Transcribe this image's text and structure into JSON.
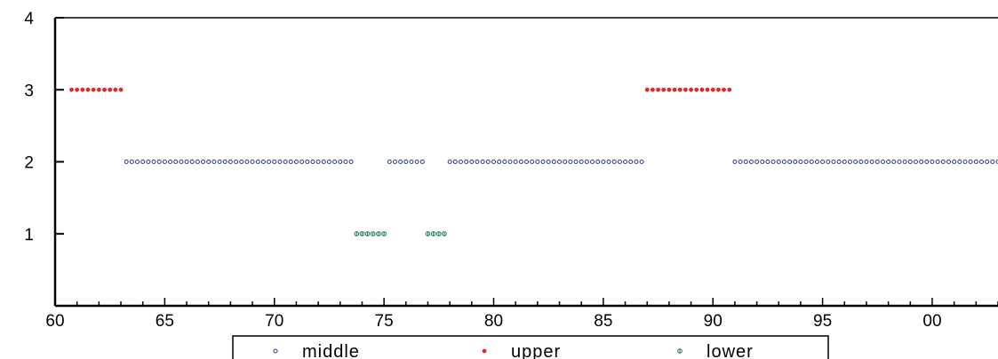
{
  "chart_data": {
    "type": "scatter",
    "title": "",
    "xlabel": "",
    "ylabel": "",
    "xlim": [
      1960,
      2003
    ],
    "ylim": [
      0,
      4
    ],
    "x_ticks": [
      {
        "value": 1960,
        "label": "60"
      },
      {
        "value": 1965,
        "label": "65"
      },
      {
        "value": 1970,
        "label": "70"
      },
      {
        "value": 1975,
        "label": "75"
      },
      {
        "value": 1980,
        "label": "80"
      },
      {
        "value": 1985,
        "label": "85"
      },
      {
        "value": 1990,
        "label": "90"
      },
      {
        "value": 1995,
        "label": "95"
      },
      {
        "value": 2000,
        "label": "00"
      }
    ],
    "y_ticks": [
      {
        "value": 1,
        "label": "1"
      },
      {
        "value": 2,
        "label": "2"
      },
      {
        "value": 3,
        "label": "3"
      },
      {
        "value": 4,
        "label": "4"
      }
    ],
    "grid": false,
    "legend_position": "bottom",
    "series": [
      {
        "name": "middle",
        "color": "#2e3a8c",
        "marker": "open-circle",
        "y": 2,
        "segments": [
          [
            1963.25,
            1973.5
          ],
          [
            1975.25,
            1976.75
          ],
          [
            1978.0,
            1986.75
          ],
          [
            1991.0,
            2003.0
          ]
        ]
      },
      {
        "name": "upper",
        "color": "#e8242a",
        "marker": "filled-circle",
        "y": 3,
        "segments": [
          [
            1960.75,
            1963.0
          ],
          [
            1987.0,
            1990.75
          ]
        ]
      },
      {
        "name": "lower",
        "color": "#1f7a5a",
        "marker": "circle-cross",
        "y": 1,
        "segments": [
          [
            1973.75,
            1975.0
          ],
          [
            1977.0,
            1977.75
          ]
        ]
      }
    ]
  }
}
